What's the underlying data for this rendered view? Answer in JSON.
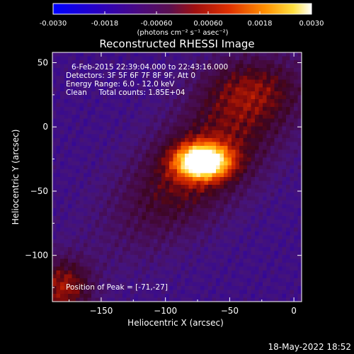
{
  "chart_data": {
    "type": "heatmap",
    "title": "Reconstructed RHESSI Image",
    "xlabel": "Heliocentric X (arcsec)",
    "ylabel": "Heliocentric Y (arcsec)",
    "xlim": [
      -188,
      6
    ],
    "ylim": [
      -136,
      58
    ],
    "x_ticks": [
      -150,
      -100,
      -50,
      0
    ],
    "y_ticks": [
      50,
      0,
      -50,
      -100
    ],
    "colorbar": {
      "range": [
        -0.003,
        0.003
      ],
      "tick_values": [
        -0.003,
        -0.0018,
        -0.0006,
        0.0006,
        0.0018,
        0.003
      ],
      "tick_labels": [
        "-0.0030",
        "-0.0018",
        "-0.00060",
        "0.00060",
        "0.0018",
        "0.0030"
      ],
      "units_label": "(photons cm⁻² s⁻¹ asec⁻²)",
      "colors": [
        "#0000ff",
        "#3a00a0",
        "#4b0f6e",
        "#7a1020",
        "#d02000",
        "#ff7000",
        "#ffd000",
        "#ffffff"
      ]
    },
    "info_lines": [
      "6-Feb-2015 22:39:04.000 to 22:43:16.000",
      "Detectors: 3F 5F 6F 7F 8F 9F, Att 0",
      "Energy Range: 6.0 - 12.0 keV",
      "Clean     Total counts: 1.85E+04"
    ],
    "peak_label": "Position of Peak = [-71,-27]",
    "peak_position": [
      -71,
      -27
    ]
  },
  "footer_date": "18-May-2022 18:52"
}
